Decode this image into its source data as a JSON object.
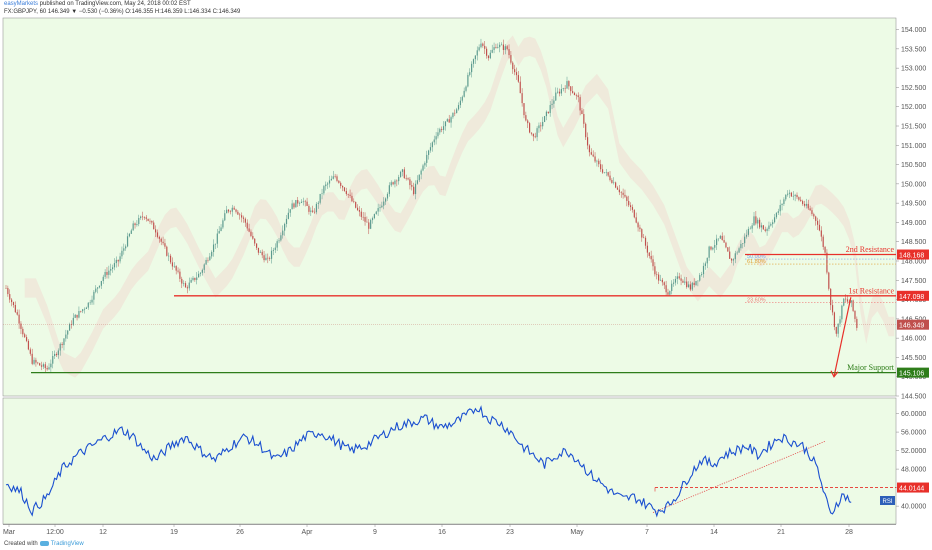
{
  "header": {
    "publisher": "easyMarkets",
    "published_text": " published on TradingView.com, May 24, 2018 00:02 EST",
    "symbol_line": "FX:GBPJPY, 60  146.349  ▼ −0.530 (−0.36%)  O:146.355  H:146.359  L:146.334  C:146.349"
  },
  "footer": {
    "created_with": "Created with",
    "brand": "TradingView"
  },
  "colors": {
    "background": "#edfbe6",
    "candle_up": "#5b9a8e",
    "candle_down": "#c0504d",
    "resistance": "#e8302a",
    "support": "#2e7d1a",
    "rsi_line": "#1a4fd0",
    "fib_blue": "#7aa6e8",
    "fib_orange": "#e0a030",
    "fib_red": "#f07a78"
  },
  "chart_data": [
    {
      "type": "candlestick",
      "symbol": "FX:GBPJPY",
      "timeframe": "60",
      "ylim": [
        144.5,
        154.3
      ],
      "yticks": [
        "154.000",
        "153.500",
        "153.000",
        "152.500",
        "152.000",
        "151.500",
        "151.000",
        "150.500",
        "150.000",
        "149.500",
        "149.000",
        "148.500",
        "148.000",
        "147.500",
        "147.000",
        "146.500",
        "146.000",
        "145.500",
        "145.000",
        "144.500"
      ],
      "xticks": [
        "Mar",
        "12:00",
        "12",
        "19",
        "26",
        "Apr",
        "9",
        "16",
        "23",
        "May",
        "7",
        "14",
        "21",
        "28"
      ],
      "path_points": [
        [
          0,
          147.3
        ],
        [
          6,
          146.6
        ],
        [
          14,
          145.4
        ],
        [
          22,
          145.2
        ],
        [
          30,
          145.9
        ],
        [
          36,
          146.5
        ],
        [
          44,
          146.9
        ],
        [
          52,
          147.6
        ],
        [
          60,
          148.0
        ],
        [
          68,
          148.9
        ],
        [
          74,
          149.2
        ],
        [
          80,
          148.8
        ],
        [
          88,
          148.0
        ],
        [
          96,
          147.3
        ],
        [
          104,
          147.7
        ],
        [
          112,
          148.5
        ],
        [
          118,
          149.3
        ],
        [
          122,
          149.4
        ],
        [
          128,
          149.0
        ],
        [
          134,
          148.3
        ],
        [
          140,
          148.0
        ],
        [
          146,
          148.6
        ],
        [
          152,
          149.4
        ],
        [
          158,
          149.6
        ],
        [
          164,
          149.2
        ],
        [
          170,
          149.9
        ],
        [
          176,
          150.2
        ],
        [
          182,
          149.8
        ],
        [
          188,
          149.3
        ],
        [
          194,
          148.9
        ],
        [
          200,
          149.4
        ],
        [
          206,
          150.0
        ],
        [
          212,
          150.3
        ],
        [
          218,
          149.8
        ],
        [
          224,
          150.6
        ],
        [
          230,
          151.3
        ],
        [
          236,
          151.6
        ],
        [
          242,
          152.0
        ],
        [
          248,
          152.9
        ],
        [
          254,
          153.7
        ],
        [
          258,
          153.3
        ],
        [
          262,
          153.6
        ],
        [
          268,
          153.5
        ],
        [
          274,
          152.6
        ],
        [
          278,
          151.6
        ],
        [
          282,
          151.2
        ],
        [
          288,
          151.7
        ],
        [
          294,
          152.3
        ],
        [
          300,
          152.6
        ],
        [
          306,
          152.2
        ],
        [
          312,
          150.8
        ],
        [
          318,
          150.4
        ],
        [
          324,
          150.1
        ],
        [
          330,
          149.7
        ],
        [
          336,
          149.2
        ],
        [
          342,
          148.4
        ],
        [
          348,
          147.6
        ],
        [
          354,
          147.2
        ],
        [
          360,
          147.6
        ],
        [
          366,
          147.3
        ],
        [
          372,
          147.7
        ],
        [
          376,
          148.3
        ],
        [
          382,
          148.6
        ],
        [
          388,
          148.0
        ],
        [
          394,
          148.5
        ],
        [
          400,
          149.1
        ],
        [
          406,
          148.8
        ],
        [
          412,
          149.2
        ],
        [
          418,
          149.8
        ],
        [
          424,
          149.6
        ],
        [
          430,
          149.3
        ],
        [
          434,
          149.0
        ],
        [
          438,
          148.2
        ],
        [
          441,
          146.9
        ],
        [
          444,
          146.1
        ],
        [
          448,
          147.0
        ],
        [
          452,
          146.9
        ],
        [
          455,
          146.3
        ]
      ],
      "price_labels": [
        {
          "price": 148.168,
          "text": "148.168",
          "color": "resistance"
        },
        {
          "price": 147.098,
          "text": "147.098",
          "color": "resistance"
        },
        {
          "price": 146.349,
          "text": "146.349",
          "color": "candle_down"
        },
        {
          "price": 145.106,
          "text": "145.106",
          "color": "support"
        }
      ],
      "levels": [
        {
          "price": 148.168,
          "label": "2nd Resistance",
          "color": "resistance"
        },
        {
          "price": 147.098,
          "label": "1st Resistance",
          "color": "resistance"
        },
        {
          "price": 145.106,
          "label": "Major Support",
          "color": "support"
        }
      ],
      "fibonacci": [
        {
          "label": "50.00%",
          "price": 148.05,
          "color": "fib_blue"
        },
        {
          "label": "61.80%",
          "price": 147.92,
          "color": "fib_orange"
        },
        {
          "label": "23.60%",
          "price": 146.92,
          "color": "fib_red"
        }
      ],
      "projection": {
        "from": 147.06,
        "to": 145.0
      }
    },
    {
      "type": "line",
      "name": "RSI",
      "ylim": [
        37.0,
        62.5
      ],
      "yticks": [
        "60.0000",
        "56.0000",
        "52.0000",
        "48.0000",
        "44.0000",
        "40.0000"
      ],
      "current_value": "44.0144",
      "threshold": 44.0144,
      "series_points": [
        [
          0,
          45
        ],
        [
          8,
          43
        ],
        [
          14,
          39
        ],
        [
          22,
          42
        ],
        [
          30,
          48
        ],
        [
          38,
          51
        ],
        [
          46,
          53
        ],
        [
          54,
          55
        ],
        [
          62,
          56.5
        ],
        [
          68,
          55
        ],
        [
          74,
          52
        ],
        [
          80,
          50
        ],
        [
          88,
          53
        ],
        [
          96,
          55
        ],
        [
          104,
          52
        ],
        [
          112,
          50
        ],
        [
          120,
          53
        ],
        [
          128,
          55
        ],
        [
          136,
          53
        ],
        [
          144,
          50
        ],
        [
          152,
          52
        ],
        [
          160,
          55
        ],
        [
          168,
          56
        ],
        [
          176,
          54
        ],
        [
          184,
          52
        ],
        [
          192,
          53
        ],
        [
          200,
          55
        ],
        [
          208,
          57
        ],
        [
          216,
          58
        ],
        [
          224,
          59
        ],
        [
          232,
          57
        ],
        [
          240,
          58
        ],
        [
          248,
          60
        ],
        [
          252,
          61.5
        ],
        [
          258,
          59
        ],
        [
          264,
          58
        ],
        [
          270,
          56
        ],
        [
          276,
          53
        ],
        [
          282,
          51
        ],
        [
          288,
          49
        ],
        [
          294,
          51
        ],
        [
          300,
          52
        ],
        [
          306,
          50
        ],
        [
          312,
          47
        ],
        [
          318,
          45
        ],
        [
          324,
          43
        ],
        [
          330,
          41.5
        ],
        [
          336,
          42
        ],
        [
          342,
          40.5
        ],
        [
          348,
          39
        ],
        [
          354,
          40
        ],
        [
          360,
          43
        ],
        [
          366,
          47
        ],
        [
          372,
          50
        ],
        [
          378,
          49
        ],
        [
          384,
          51
        ],
        [
          390,
          52
        ],
        [
          396,
          53
        ],
        [
          402,
          51
        ],
        [
          408,
          53
        ],
        [
          414,
          55
        ],
        [
          420,
          54
        ],
        [
          426,
          53
        ],
        [
          430,
          51
        ],
        [
          434,
          48
        ],
        [
          438,
          42
        ],
        [
          441,
          38
        ],
        [
          444,
          40.5
        ],
        [
          448,
          42.5
        ],
        [
          452,
          41
        ]
      ],
      "trendline": [
        [
          346,
          38.6
        ],
        [
          438,
          54
        ]
      ]
    }
  ]
}
